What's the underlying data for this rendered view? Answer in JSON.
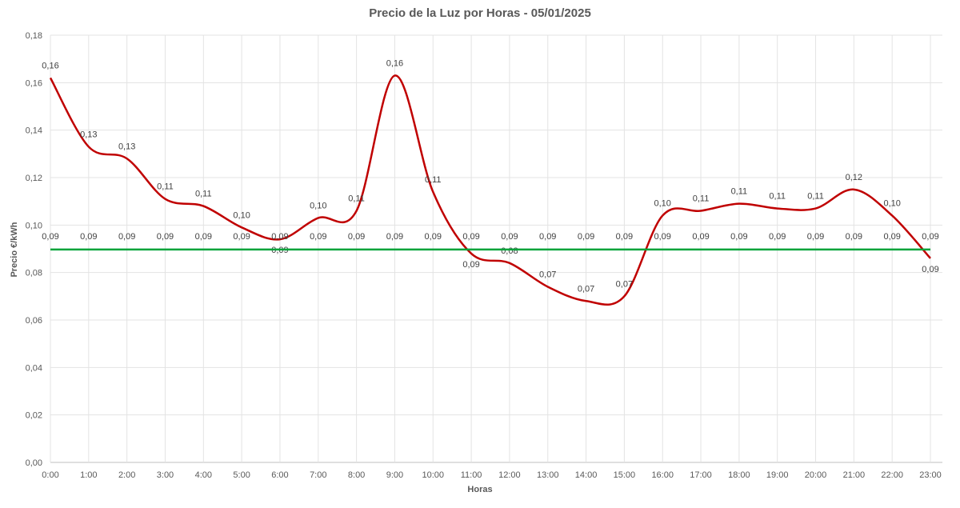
{
  "chart_data": {
    "type": "line",
    "title": "Precio de la Luz por Horas - 05/01/2025",
    "xlabel": "Horas",
    "ylabel": "Precio €/kWh",
    "ylim": [
      0,
      0.18
    ],
    "yticks": [
      "0,00",
      "0,02",
      "0,04",
      "0,06",
      "0,08",
      "0,10",
      "0,12",
      "0,14",
      "0,16",
      "0,18"
    ],
    "categories": [
      "0:00",
      "1:00",
      "2:00",
      "3:00",
      "4:00",
      "5:00",
      "6:00",
      "7:00",
      "8:00",
      "9:00",
      "10:00",
      "11:00",
      "12:00",
      "13:00",
      "14:00",
      "15:00",
      "16:00",
      "17:00",
      "18:00",
      "19:00",
      "20:00",
      "21:00",
      "22:00",
      "23:00"
    ],
    "grid": true,
    "series": [
      {
        "color": "#c00000",
        "smooth": true,
        "values": [
          0.162,
          0.133,
          0.128,
          0.111,
          0.108,
          0.099,
          0.094,
          0.103,
          0.106,
          0.163,
          0.114,
          0.088,
          0.084,
          0.074,
          0.068,
          0.07,
          0.104,
          0.106,
          0.109,
          0.107,
          0.107,
          0.115,
          0.104,
          0.086
        ],
        "data_labels": [
          "0,16",
          "0,13",
          "0,13",
          "0,11",
          "0,11",
          "0,10",
          "0,09",
          "0,10",
          "0,11",
          "0,16",
          "0,11",
          "0,09",
          "0,08",
          "0,07",
          "0,07",
          "0,07",
          "0,10",
          "0,11",
          "0,11",
          "0,11",
          "0,11",
          "0,12",
          "0,10",
          "0,09"
        ]
      },
      {
        "color": "#00a33a",
        "smooth": false,
        "values": [
          0.0897,
          0.0897,
          0.0897,
          0.0897,
          0.0897,
          0.0897,
          0.0897,
          0.0897,
          0.0897,
          0.0897,
          0.0897,
          0.0897,
          0.0897,
          0.0897,
          0.0897,
          0.0897,
          0.0897,
          0.0897,
          0.0897,
          0.0897,
          0.0897,
          0.0897,
          0.0897,
          0.0897
        ],
        "data_labels": [
          "0,09",
          "0,09",
          "0,09",
          "0,09",
          "0,09",
          "0,09",
          "0,09",
          "0,09",
          "0,09",
          "0,09",
          "0,09",
          "0,09",
          "0,09",
          "0,09",
          "0,09",
          "0,09",
          "0,09",
          "0,09",
          "0,09",
          "0,09",
          "0,09",
          "0,09",
          "0,09",
          "0,09"
        ]
      }
    ]
  }
}
